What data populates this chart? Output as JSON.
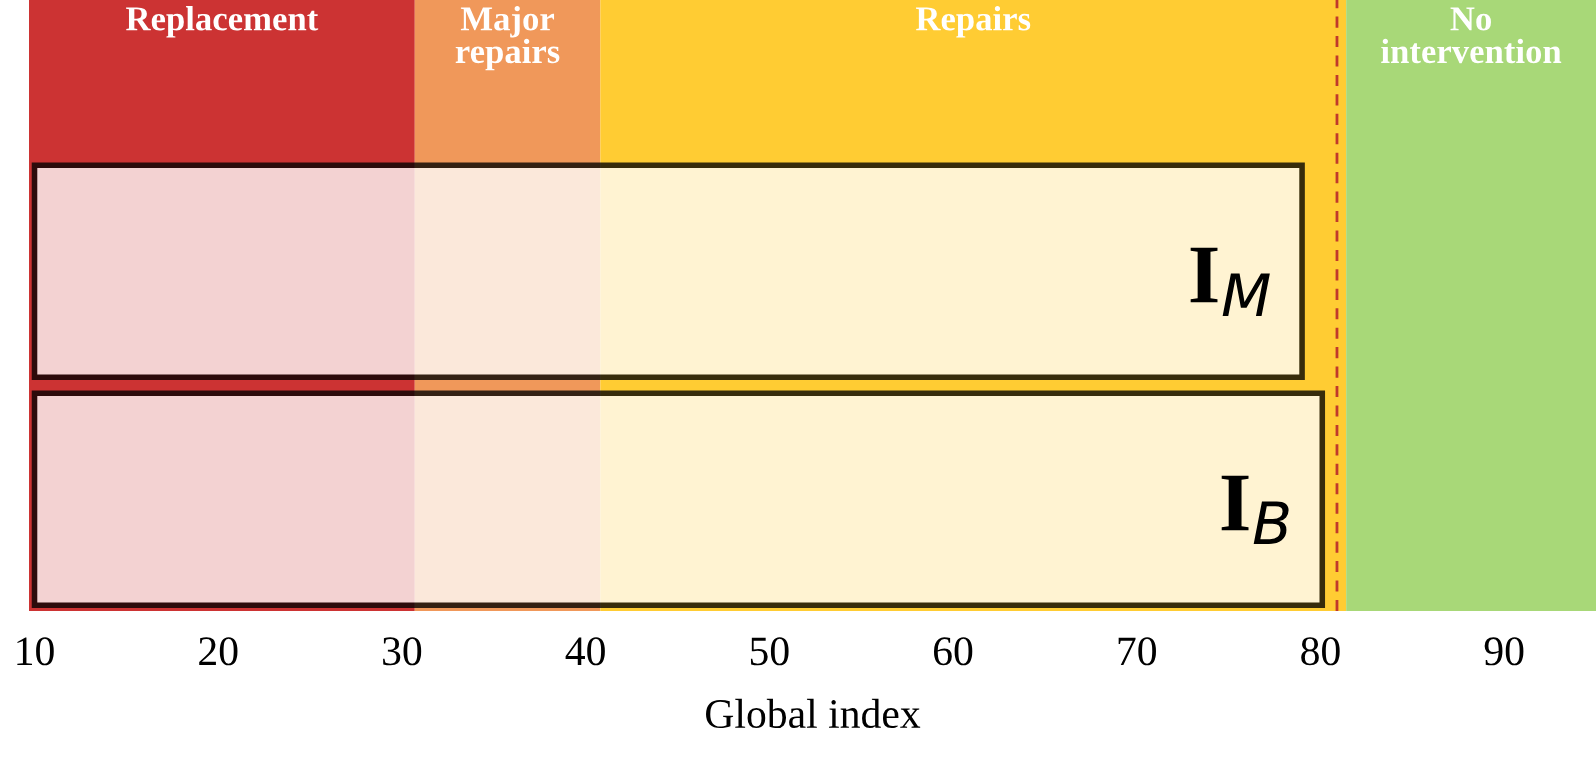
{
  "chart_data": {
    "type": "bar",
    "orientation": "horizontal",
    "xlabel": "Global index",
    "categories": [
      "I$_{M}$",
      "I$_{B}$"
    ],
    "base": [
      10,
      10
    ],
    "values": [
      69,
      70.1
    ],
    "color": "#ffffff",
    "xlim": [
      9.7,
      95
    ],
    "xticks": [
      10,
      20,
      30,
      40,
      50,
      60,
      70,
      80,
      90
    ],
    "tick_labels": "x",
    "grid": false,
    "legend": false,
    "bands": [
      {
        "axis": "x",
        "from": 9.7,
        "to": 30.7,
        "label": "Replacement",
        "color": "#cc3333"
      },
      {
        "axis": "x",
        "from": 30.7,
        "to": 40.8,
        "label": "Major\nrepairs",
        "color": "#f0985a"
      },
      {
        "axis": "x",
        "from": 40.8,
        "to": 81.4,
        "label": "Repairs",
        "color": "#ffcc33"
      },
      {
        "axis": "x",
        "from": 81.4,
        "to": 95,
        "label": "No\nintervention",
        "color": "#a8d878"
      }
    ],
    "ref_lines": [
      {
        "axis": "x",
        "value": 80.9,
        "color": "#c0392b",
        "line_style": "dashed"
      }
    ]
  }
}
